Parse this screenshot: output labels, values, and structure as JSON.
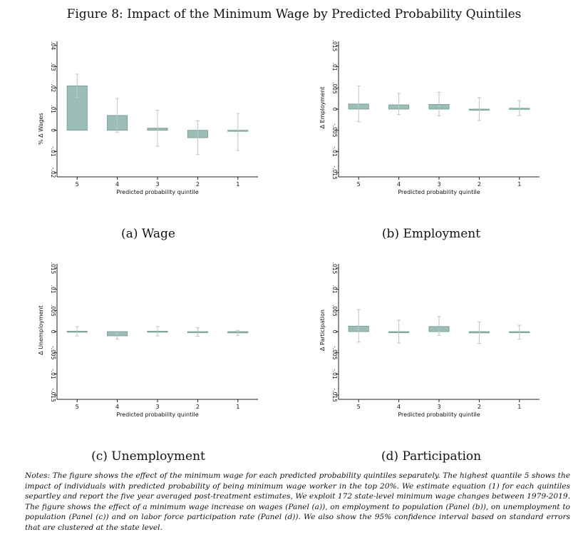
{
  "figure_title": "Figure 8: Impact of the Minimum Wage by Predicted Probability Quintiles",
  "notes": "Notes: The figure shows the effect of the minimum wage for each predicted probability quintiles separately. The highest quantile 5 shows the impact of individuals with predicted probability of being minimum wage worker in the top 20%. We estimate equation (1) for each quintiles separtley and report the five year averaged post-treatment estimates, We exploit 172 state-level minimum wage changes between 1979-2019. The figure shows the effect of a minimum wage increase on wages (Panel (a)), on employment to population (Panel (b)), on unemployment to population (Panel (c)) and on labor force participation rate (Panel (d)). We also show the 95% confidence interval based on standard errors that are clustered at the state level.",
  "colors": {
    "bar_fill": "#9dbdb7",
    "bar_stroke": "#6f9690",
    "ci": "#b8c8c6",
    "axis": "#222222"
  },
  "chart_data": [
    {
      "type": "bar",
      "caption": "(a) Wage",
      "xlabel": "Predicted probability quintile",
      "ylabel": "% Δ Wages",
      "categories": [
        "5",
        "4",
        "3",
        "2",
        "1"
      ],
      "values": [
        0.021,
        0.007,
        0.001,
        -0.0035,
        -0.0005
      ],
      "ci_low": [
        0.0155,
        -0.001,
        -0.0075,
        -0.0115,
        -0.0095
      ],
      "ci_high": [
        0.0265,
        0.015,
        0.0095,
        0.0045,
        0.008
      ],
      "ylim": [
        -0.022,
        0.042
      ],
      "yticks": [
        -0.02,
        -0.01,
        0,
        0.01,
        0.02,
        0.03,
        0.04
      ],
      "ytick_labels": [
        "-.02",
        "-.01",
        "0",
        ".01",
        ".02",
        ".03",
        ".04"
      ]
    },
    {
      "type": "bar",
      "caption": "(b) Employment",
      "xlabel": "Predicted probability quintile",
      "ylabel": "Δ Employment",
      "categories": [
        "5",
        "4",
        "3",
        "2",
        "1"
      ],
      "values": [
        0.0012,
        0.001,
        0.0011,
        0.0,
        0.0002
      ],
      "ci_low": [
        -0.003,
        -0.0013,
        -0.0016,
        -0.0027,
        -0.0015
      ],
      "ci_high": [
        0.0055,
        0.0037,
        0.004,
        0.0027,
        0.002
      ],
      "ylim": [
        -0.016,
        0.016
      ],
      "yticks": [
        -0.015,
        -0.01,
        -0.005,
        0,
        0.005,
        0.01,
        0.015
      ],
      "ytick_labels": [
        "-.015",
        "-.01",
        "-.005",
        "0",
        ".005",
        ".01",
        ".015"
      ]
    },
    {
      "type": "bar",
      "caption": "(c) Unemployment",
      "xlabel": "Predicted probability quintile",
      "ylabel": "Δ Unemployment",
      "categories": [
        "5",
        "4",
        "3",
        "2",
        "1"
      ],
      "values": [
        0.0001,
        -0.001,
        0.0001,
        -0.0001,
        -0.0003
      ],
      "ci_low": [
        -0.001,
        -0.0018,
        -0.001,
        -0.0011,
        -0.0009
      ],
      "ci_high": [
        0.0012,
        -0.0002,
        0.0012,
        0.0009,
        0.0003
      ],
      "ylim": [
        -0.016,
        0.016
      ],
      "yticks": [
        -0.015,
        -0.01,
        -0.005,
        0,
        0.005,
        0.01,
        0.015
      ],
      "ytick_labels": [
        "-.015",
        "-.01",
        "-.005",
        "0",
        ".005",
        ".01",
        ".015"
      ]
    },
    {
      "type": "bar",
      "caption": "(d) Participation",
      "xlabel": "Predicted probability quintile",
      "ylabel": "Δ Participation",
      "categories": [
        "5",
        "4",
        "3",
        "2",
        "1"
      ],
      "values": [
        0.0013,
        0.0,
        0.0012,
        -0.0003,
        -0.0001
      ],
      "ci_low": [
        -0.0025,
        -0.0027,
        -0.0009,
        -0.0028,
        -0.0018
      ],
      "ci_high": [
        0.0052,
        0.0027,
        0.0036,
        0.0023,
        0.0015
      ],
      "ylim": [
        -0.016,
        0.016
      ],
      "yticks": [
        -0.015,
        -0.01,
        -0.005,
        0,
        0.005,
        0.01,
        0.015
      ],
      "ytick_labels": [
        "-.015",
        "-.01",
        "-.005",
        "0",
        ".005",
        ".01",
        ".015"
      ]
    }
  ]
}
